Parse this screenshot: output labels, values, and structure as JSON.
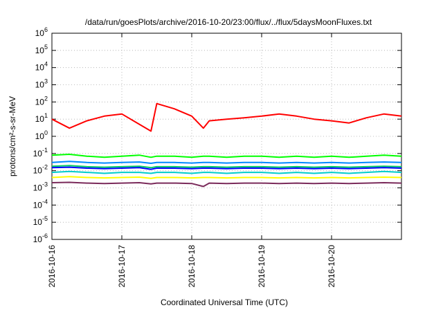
{
  "chart_data": {
    "type": "line",
    "title": "/data/run/goesPlots/archive/2016-10-20/23:00/flux/../flux/5daysMoonFluxes.txt",
    "xlabel": "Coordinated Universal Time (UTC)",
    "ylabel": "protons/cm²-s-sr-MeV",
    "yscale": "log",
    "ylim": [
      1e-06,
      1000000.0
    ],
    "xlim": [
      "2016-10-16",
      "2016-10-21"
    ],
    "xticks": [
      "2016-10-16",
      "2016-10-17",
      "2016-10-18",
      "2016-10-19",
      "2016-10-20"
    ],
    "yticks": [
      {
        "value": 1e-06,
        "base": "10",
        "exp": "-6"
      },
      {
        "value": 1e-05,
        "base": "10",
        "exp": "-5"
      },
      {
        "value": 0.0001,
        "base": "10",
        "exp": "-4"
      },
      {
        "value": 0.001,
        "base": "10",
        "exp": "-3"
      },
      {
        "value": 0.01,
        "base": "10",
        "exp": "-2"
      },
      {
        "value": 0.1,
        "base": "10",
        "exp": "-1"
      },
      {
        "value": 1,
        "base": "10",
        "exp": "0"
      },
      {
        "value": 10,
        "base": "10",
        "exp": "1"
      },
      {
        "value": 100,
        "base": "10",
        "exp": "2"
      },
      {
        "value": 1000,
        "base": "10",
        "exp": "3"
      },
      {
        "value": 10000,
        "base": "10",
        "exp": "4"
      },
      {
        "value": 100000,
        "base": "10",
        "exp": "5"
      },
      {
        "value": 1000000,
        "base": "10",
        "exp": "6"
      }
    ],
    "grid": true,
    "x": [
      "2016-10-16T00:00",
      "2016-10-16T06:00",
      "2016-10-16T12:00",
      "2016-10-16T18:00",
      "2016-10-17T00:00",
      "2016-10-17T06:00",
      "2016-10-17T10:00",
      "2016-10-17T12:00",
      "2016-10-17T18:00",
      "2016-10-18T00:00",
      "2016-10-18T04:00",
      "2016-10-18T06:00",
      "2016-10-18T12:00",
      "2016-10-18T18:00",
      "2016-10-19T00:00",
      "2016-10-19T06:00",
      "2016-10-19T12:00",
      "2016-10-19T18:00",
      "2016-10-20T00:00",
      "2016-10-20T06:00",
      "2016-10-20T12:00",
      "2016-10-20T18:00",
      "2016-10-21T00:00"
    ],
    "series": [
      {
        "color": "#ff0000",
        "values": [
          10,
          3,
          8,
          15,
          20,
          5,
          2,
          80,
          40,
          15,
          3,
          8,
          10,
          12,
          15,
          20,
          15,
          10,
          8,
          6,
          12,
          20,
          15
        ]
      },
      {
        "color": "#00ff00",
        "values": [
          0.08,
          0.09,
          0.07,
          0.06,
          0.07,
          0.08,
          0.06,
          0.07,
          0.07,
          0.06,
          0.07,
          0.07,
          0.06,
          0.07,
          0.07,
          0.06,
          0.07,
          0.06,
          0.07,
          0.06,
          0.07,
          0.08,
          0.07
        ]
      },
      {
        "color": "#0088ff",
        "values": [
          0.03,
          0.035,
          0.03,
          0.028,
          0.03,
          0.032,
          0.027,
          0.03,
          0.03,
          0.028,
          0.03,
          0.03,
          0.028,
          0.03,
          0.03,
          0.028,
          0.03,
          0.028,
          0.03,
          0.028,
          0.03,
          0.032,
          0.03
        ]
      },
      {
        "color": "#00cc66",
        "values": [
          0.018,
          0.02,
          0.017,
          0.016,
          0.017,
          0.018,
          0.015,
          0.017,
          0.017,
          0.016,
          0.017,
          0.017,
          0.016,
          0.017,
          0.017,
          0.016,
          0.017,
          0.016,
          0.017,
          0.016,
          0.017,
          0.018,
          0.017
        ]
      },
      {
        "color": "#0000ff",
        "values": [
          0.015,
          0.016,
          0.014,
          0.013,
          0.014,
          0.015,
          0.012,
          0.014,
          0.014,
          0.013,
          0.014,
          0.014,
          0.013,
          0.014,
          0.014,
          0.013,
          0.014,
          0.013,
          0.014,
          0.013,
          0.014,
          0.015,
          0.014
        ]
      },
      {
        "color": "#00cccc",
        "values": [
          0.008,
          0.009,
          0.008,
          0.007,
          0.008,
          0.008,
          0.007,
          0.008,
          0.008,
          0.007,
          0.008,
          0.008,
          0.007,
          0.008,
          0.008,
          0.007,
          0.008,
          0.007,
          0.008,
          0.007,
          0.008,
          0.009,
          0.008
        ]
      },
      {
        "color": "#ffff00",
        "values": [
          0.004,
          0.0045,
          0.004,
          0.0038,
          0.004,
          0.0042,
          0.0036,
          0.004,
          0.004,
          0.0038,
          0.004,
          0.004,
          0.0038,
          0.004,
          0.004,
          0.0038,
          0.004,
          0.0038,
          0.004,
          0.0038,
          0.004,
          0.0042,
          0.004
        ]
      },
      {
        "color": "#7a2a5a",
        "values": [
          0.002,
          0.0021,
          0.0019,
          0.0018,
          0.0019,
          0.002,
          0.0017,
          0.0019,
          0.0019,
          0.0018,
          0.0012,
          0.0019,
          0.0018,
          0.0019,
          0.0019,
          0.0018,
          0.0019,
          0.0018,
          0.0019,
          0.0018,
          0.0019,
          0.002,
          0.0019
        ]
      }
    ]
  }
}
